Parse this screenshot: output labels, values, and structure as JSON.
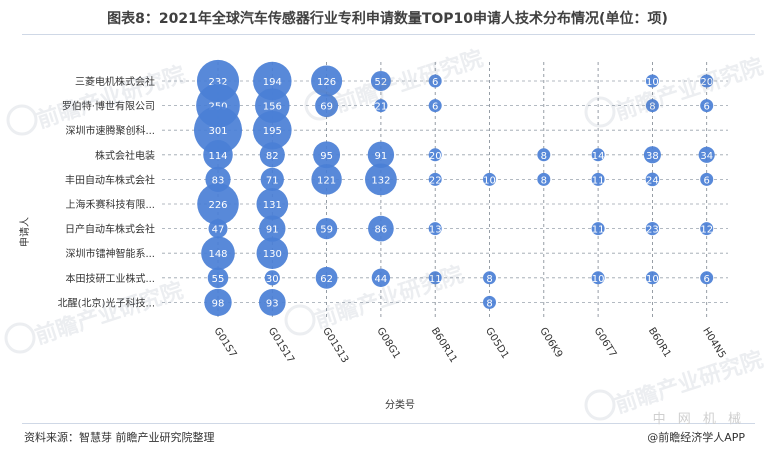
{
  "title": "图表8：2021年全球汽车传感器行业专利申请数量TOP10申请人技术分布情况(单位：项)",
  "source": "资料来源：智慧芽 前瞻产业研究院整理",
  "watermark": {
    "brand": "前瞻产业研究院",
    "site_cn": "中 网 机 械",
    "credit": "@前瞻经济学人APP"
  },
  "chart_data": {
    "type": "scatter",
    "subtype": "bubble",
    "xlabel": "分类号",
    "ylabel": "申请人",
    "bubble_color": "#4a7fd6",
    "x_categories": [
      "G01S7",
      "G01S17",
      "G01S13",
      "G08G1",
      "B60R11",
      "G05D1",
      "G06K9",
      "G06T7",
      "B60R1",
      "H04N5"
    ],
    "y_categories": [
      "三菱电机株式会社",
      "罗伯特·博世有限公司",
      "深圳市速腾聚创科...",
      "株式会社电装",
      "丰田自动车株式会社",
      "上海禾赛科技有限...",
      "日产自动车株式会社",
      "深圳市镭神智能系...",
      "本田技研工业株式...",
      "北醒(北京)光子科技..."
    ],
    "points": [
      {
        "y": "三菱电机株式会社",
        "x": "G01S7",
        "value": 232
      },
      {
        "y": "三菱电机株式会社",
        "x": "G01S17",
        "value": 194
      },
      {
        "y": "三菱电机株式会社",
        "x": "G01S13",
        "value": 126
      },
      {
        "y": "三菱电机株式会社",
        "x": "G08G1",
        "value": 52
      },
      {
        "y": "三菱电机株式会社",
        "x": "B60R11",
        "value": 6
      },
      {
        "y": "三菱电机株式会社",
        "x": "B60R1",
        "value": 10
      },
      {
        "y": "三菱电机株式会社",
        "x": "H04N5",
        "value": 20
      },
      {
        "y": "罗伯特·博世有限公司",
        "x": "G01S7",
        "value": 250
      },
      {
        "y": "罗伯特·博世有限公司",
        "x": "G01S17",
        "value": 156
      },
      {
        "y": "罗伯特·博世有限公司",
        "x": "G01S13",
        "value": 69
      },
      {
        "y": "罗伯特·博世有限公司",
        "x": "G08G1",
        "value": 21
      },
      {
        "y": "罗伯特·博世有限公司",
        "x": "B60R11",
        "value": 6
      },
      {
        "y": "罗伯特·博世有限公司",
        "x": "B60R1",
        "value": 8
      },
      {
        "y": "罗伯特·博世有限公司",
        "x": "H04N5",
        "value": 6
      },
      {
        "y": "深圳市速腾聚创科...",
        "x": "G01S7",
        "value": 301
      },
      {
        "y": "深圳市速腾聚创科...",
        "x": "G01S17",
        "value": 195
      },
      {
        "y": "株式会社电装",
        "x": "G01S7",
        "value": 114
      },
      {
        "y": "株式会社电装",
        "x": "G01S17",
        "value": 82
      },
      {
        "y": "株式会社电装",
        "x": "G01S13",
        "value": 95
      },
      {
        "y": "株式会社电装",
        "x": "G08G1",
        "value": 91
      },
      {
        "y": "株式会社电装",
        "x": "B60R11",
        "value": 20
      },
      {
        "y": "株式会社电装",
        "x": "G06K9",
        "value": 8
      },
      {
        "y": "株式会社电装",
        "x": "G06T7",
        "value": 14
      },
      {
        "y": "株式会社电装",
        "x": "B60R1",
        "value": 38
      },
      {
        "y": "株式会社电装",
        "x": "H04N5",
        "value": 34
      },
      {
        "y": "丰田自动车株式会社",
        "x": "G01S7",
        "value": 83
      },
      {
        "y": "丰田自动车株式会社",
        "x": "G01S17",
        "value": 71
      },
      {
        "y": "丰田自动车株式会社",
        "x": "G01S13",
        "value": 121
      },
      {
        "y": "丰田自动车株式会社",
        "x": "G08G1",
        "value": 132
      },
      {
        "y": "丰田自动车株式会社",
        "x": "B60R11",
        "value": 22
      },
      {
        "y": "丰田自动车株式会社",
        "x": "G05D1",
        "value": 10
      },
      {
        "y": "丰田自动车株式会社",
        "x": "G06K9",
        "value": 8
      },
      {
        "y": "丰田自动车株式会社",
        "x": "G06T7",
        "value": 11
      },
      {
        "y": "丰田自动车株式会社",
        "x": "B60R1",
        "value": 24
      },
      {
        "y": "丰田自动车株式会社",
        "x": "H04N5",
        "value": 6
      },
      {
        "y": "上海禾赛科技有限...",
        "x": "G01S7",
        "value": 226
      },
      {
        "y": "上海禾赛科技有限...",
        "x": "G01S17",
        "value": 131
      },
      {
        "y": "日产自动车株式会社",
        "x": "G01S7",
        "value": 47
      },
      {
        "y": "日产自动车株式会社",
        "x": "G01S17",
        "value": 91
      },
      {
        "y": "日产自动车株式会社",
        "x": "G01S13",
        "value": 59
      },
      {
        "y": "日产自动车株式会社",
        "x": "G08G1",
        "value": 86
      },
      {
        "y": "日产自动车株式会社",
        "x": "B60R11",
        "value": 13
      },
      {
        "y": "日产自动车株式会社",
        "x": "G06T7",
        "value": 11
      },
      {
        "y": "日产自动车株式会社",
        "x": "B60R1",
        "value": 23
      },
      {
        "y": "日产自动车株式会社",
        "x": "H04N5",
        "value": 12
      },
      {
        "y": "深圳市镭神智能系...",
        "x": "G01S7",
        "value": 148
      },
      {
        "y": "深圳市镭神智能系...",
        "x": "G01S17",
        "value": 130
      },
      {
        "y": "本田技研工业株式...",
        "x": "G01S7",
        "value": 55
      },
      {
        "y": "本田技研工业株式...",
        "x": "G01S17",
        "value": 30
      },
      {
        "y": "本田技研工业株式...",
        "x": "G01S13",
        "value": 62
      },
      {
        "y": "本田技研工业株式...",
        "x": "G08G1",
        "value": 44
      },
      {
        "y": "本田技研工业株式...",
        "x": "B60R11",
        "value": 11
      },
      {
        "y": "本田技研工业株式...",
        "x": "G05D1",
        "value": 8
      },
      {
        "y": "本田技研工业株式...",
        "x": "G06T7",
        "value": 10
      },
      {
        "y": "本田技研工业株式...",
        "x": "B60R1",
        "value": 10
      },
      {
        "y": "本田技研工业株式...",
        "x": "H04N5",
        "value": 6
      },
      {
        "y": "北醒(北京)光子科技...",
        "x": "G01S7",
        "value": 98
      },
      {
        "y": "北醒(北京)光子科技...",
        "x": "G01S17",
        "value": 93
      },
      {
        "y": "北醒(北京)光子科技...",
        "x": "G05D1",
        "value": 8
      }
    ]
  }
}
